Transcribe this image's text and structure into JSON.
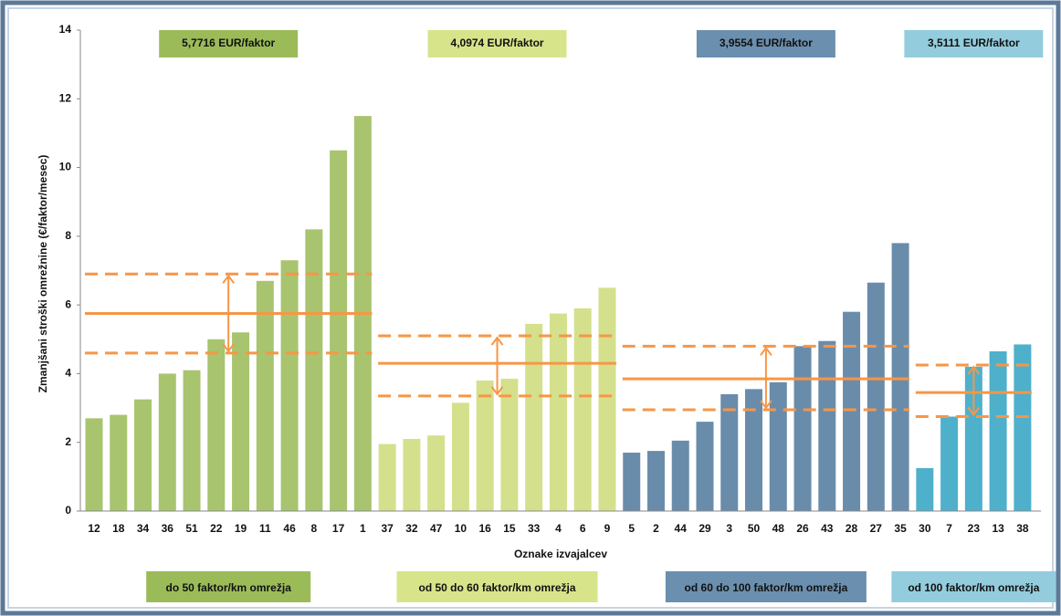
{
  "chart_data": {
    "type": "bar",
    "y_label": "Zmanjšani stroški omrežnine  (€/faktor/mesec)",
    "x_label": "Oznake izvajalcev",
    "ylim": [
      0,
      14
    ],
    "yticks": [
      0,
      2,
      4,
      6,
      8,
      10,
      12,
      14
    ],
    "line_color": "#f79646",
    "groups": [
      {
        "label": "5,7716 EUR/faktor",
        "band_label": "do 50 faktor/km omrežja",
        "color": "#a8c46f",
        "header_color": "#9bbb59",
        "categories": [
          "12",
          "18",
          "34",
          "36",
          "51",
          "22",
          "19",
          "11",
          "46",
          "8",
          "17",
          "1"
        ],
        "values": [
          2.7,
          2.8,
          3.25,
          4.0,
          4.1,
          5.0,
          5.2,
          6.7,
          7.3,
          8.2,
          10.5,
          11.5
        ],
        "mean": 5.75,
        "upper": 6.9,
        "lower": 4.6
      },
      {
        "label": "4,0974 EUR/faktor",
        "band_label": "od 50 do 60 faktor/km omrežja",
        "color": "#d4e08c",
        "header_color": "#d8e48a",
        "categories": [
          "37",
          "32",
          "47",
          "10",
          "16",
          "15",
          "33",
          "4",
          "6",
          "9"
        ],
        "values": [
          1.95,
          2.1,
          2.2,
          3.15,
          3.8,
          3.85,
          5.45,
          5.75,
          5.9,
          6.5
        ],
        "mean": 4.3,
        "upper": 5.1,
        "lower": 3.35
      },
      {
        "label": "3,9554 EUR/faktor",
        "band_label": "od 60 do 100 faktor/km omrežja",
        "color": "#6a8cab",
        "header_color": "#6b8fae",
        "categories": [
          "5",
          "2",
          "44",
          "29",
          "3",
          "50",
          "48",
          "26",
          "43",
          "28",
          "27",
          "35"
        ],
        "values": [
          1.7,
          1.75,
          2.05,
          2.6,
          3.4,
          3.55,
          3.75,
          4.8,
          4.95,
          5.8,
          6.65,
          7.8
        ],
        "mean": 3.85,
        "upper": 4.8,
        "lower": 2.95
      },
      {
        "label": "3,5111 EUR/faktor",
        "band_label": "od  100 faktor/km omrežja",
        "color": "#4fb0cb",
        "header_color": "#93cddd",
        "categories": [
          "30",
          "7",
          "23",
          "13",
          "38"
        ],
        "values": [
          1.25,
          2.75,
          4.2,
          4.65,
          4.85
        ],
        "mean": 3.45,
        "upper": 4.25,
        "lower": 2.75
      }
    ]
  }
}
